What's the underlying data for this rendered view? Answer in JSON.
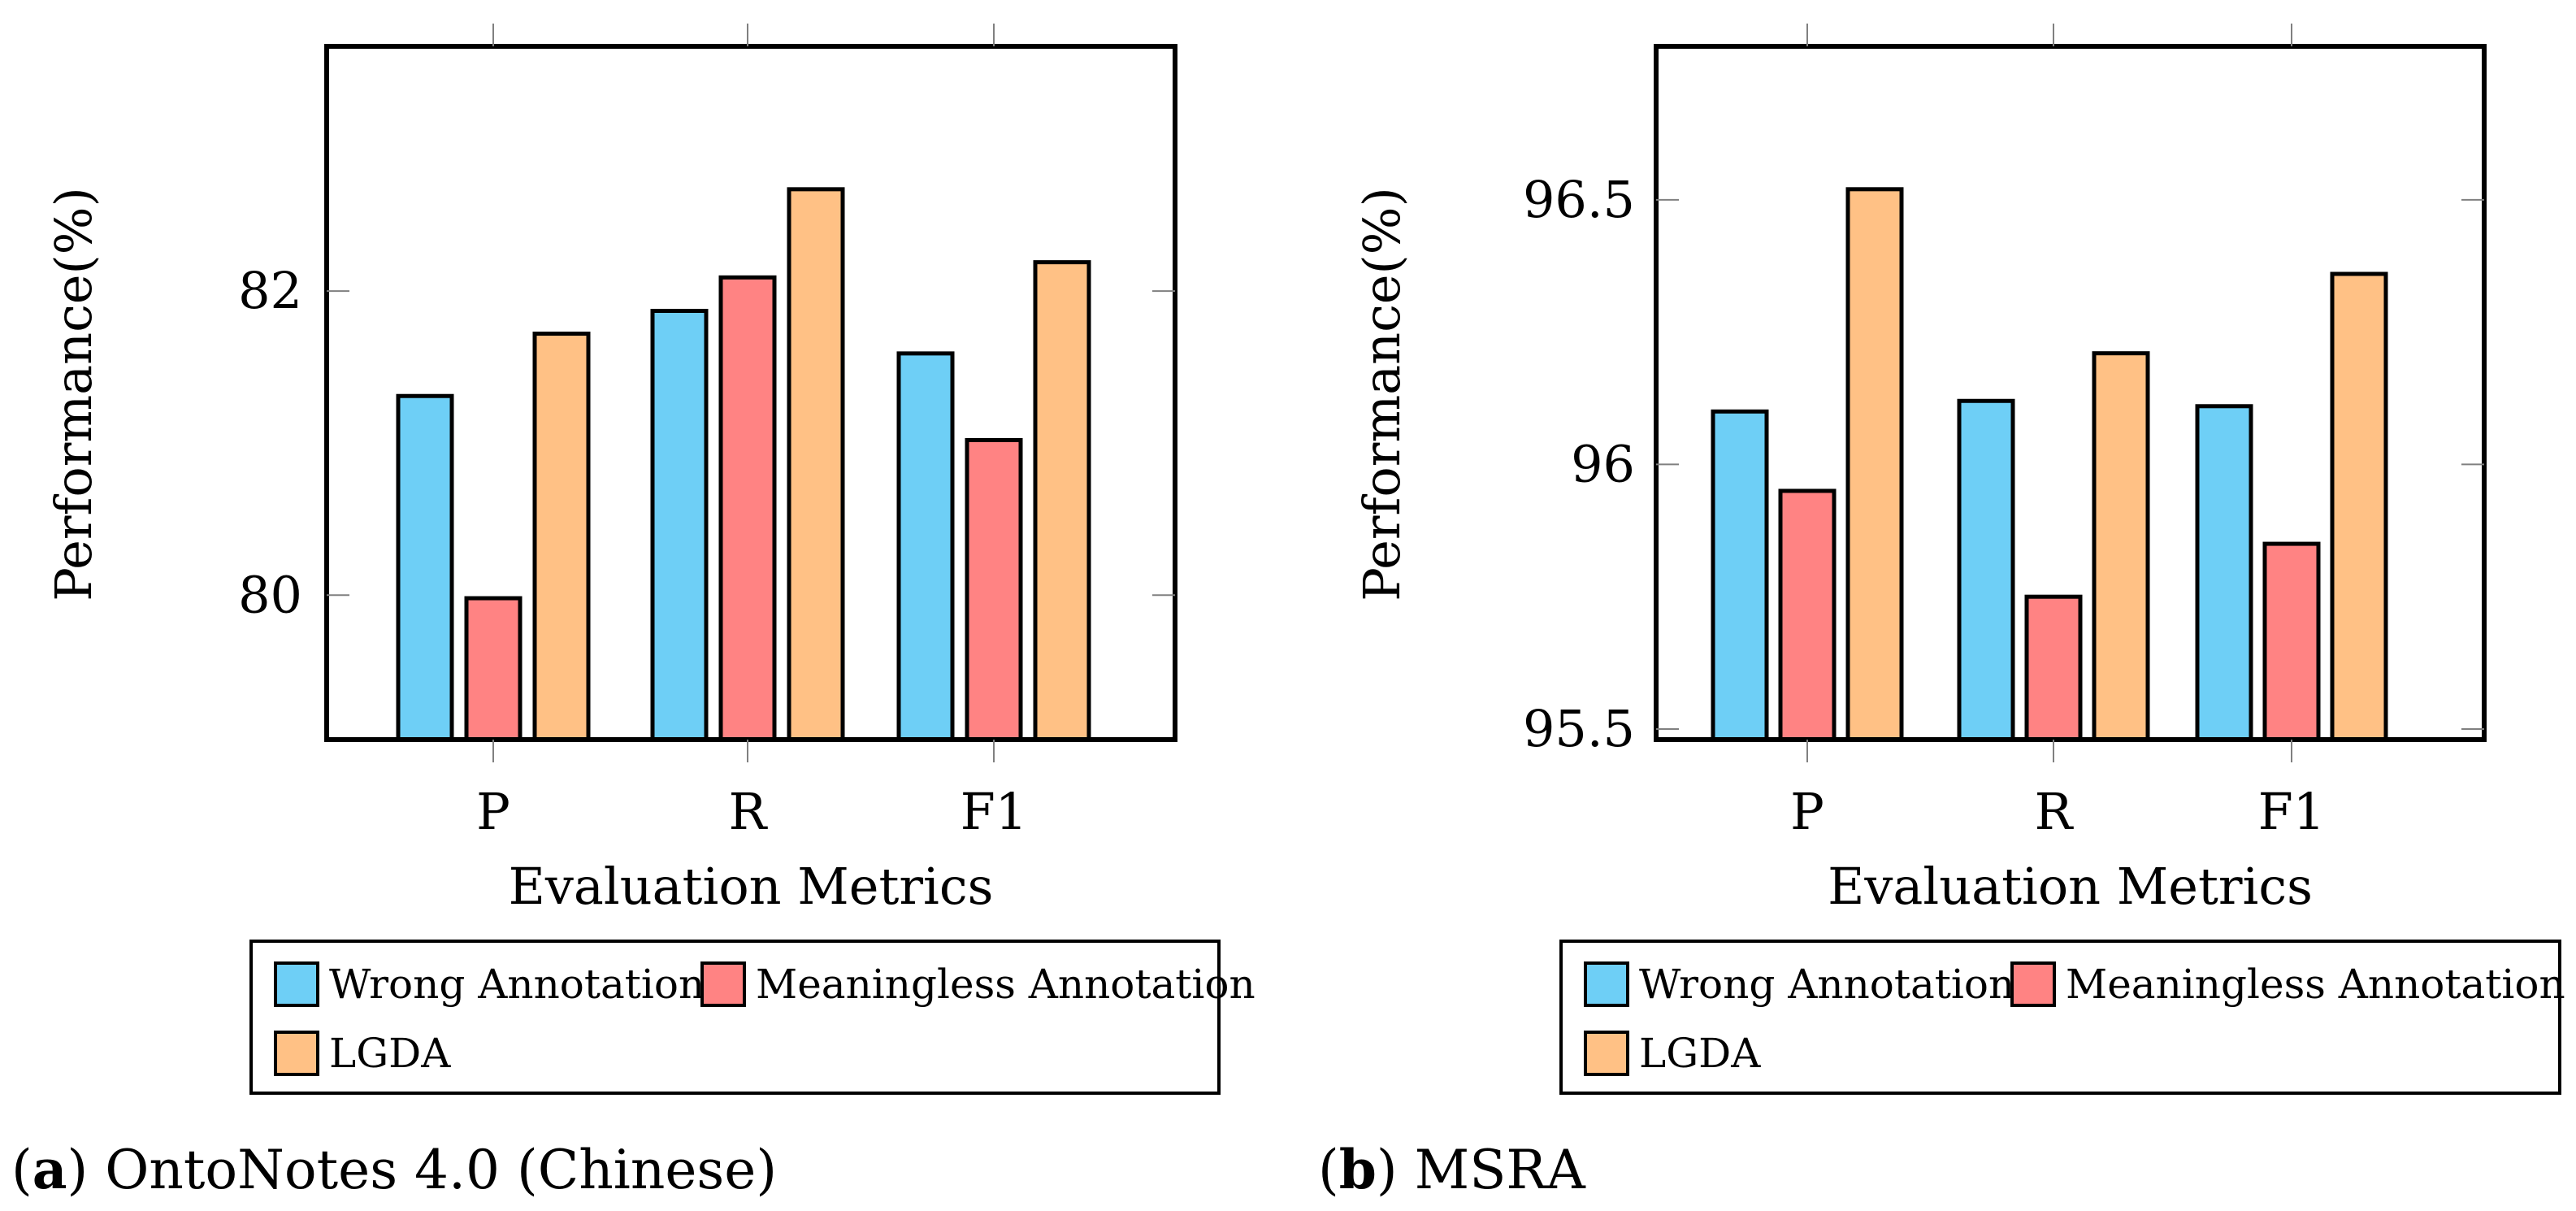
{
  "colors": {
    "wrong": "#6ECFF6",
    "meaningless": "#FF8383",
    "lgda": "#FFC185",
    "axis": "#000000",
    "tick": "#808080"
  },
  "chart_data": [
    {
      "type": "bar",
      "panel": "a",
      "caption_label": "a",
      "caption_text": "OntoNotes 4.0 (Chinese)",
      "xlabel": "Evaluation Metrics",
      "ylabel": "Performance(%)",
      "categories": [
        "P",
        "R",
        "F1"
      ],
      "ylim": [
        79.05,
        83.61
      ],
      "yticks": [
        80,
        82
      ],
      "ytick_labels": [
        "80",
        "82"
      ],
      "legend_placement": "below",
      "series": [
        {
          "name": "Wrong Annotation",
          "key": "wrong",
          "values": [
            81.31,
            81.87,
            81.59
          ]
        },
        {
          "name": "Meaningless Annotation",
          "key": "meaningless",
          "values": [
            79.98,
            82.09,
            81.02
          ]
        },
        {
          "name": "LGDA",
          "key": "lgda",
          "values": [
            81.72,
            82.67,
            82.19
          ]
        }
      ]
    },
    {
      "type": "bar",
      "panel": "b",
      "caption_label": "b",
      "caption_text": "MSRA",
      "xlabel": "Evaluation Metrics",
      "ylabel": "Performance(%)",
      "categories": [
        "P",
        "R",
        "F1"
      ],
      "ylim": [
        95.48,
        96.79
      ],
      "yticks": [
        95.5,
        96,
        96.5
      ],
      "ytick_labels": [
        "95.5",
        "96",
        "96.5"
      ],
      "legend_placement": "below",
      "series": [
        {
          "name": "Wrong Annotation",
          "key": "wrong",
          "values": [
            96.1,
            96.12,
            96.11
          ]
        },
        {
          "name": "Meaningless Annotation",
          "key": "meaningless",
          "values": [
            95.95,
            95.75,
            95.85
          ]
        },
        {
          "name": "LGDA",
          "key": "lgda",
          "values": [
            96.52,
            96.21,
            96.36
          ]
        }
      ]
    }
  ]
}
